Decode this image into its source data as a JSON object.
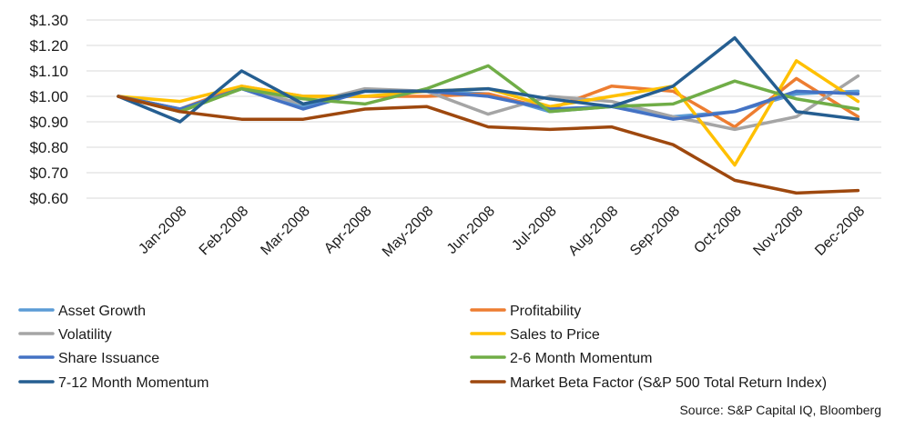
{
  "chart_data": {
    "type": "line",
    "title": "",
    "xlabel": "",
    "ylabel": "",
    "ylim": [
      0.6,
      1.3
    ],
    "y_ticks": [
      0.6,
      0.7,
      0.8,
      0.9,
      1.0,
      1.1,
      1.2,
      1.3
    ],
    "y_tick_labels": [
      "$0.60",
      "$0.70",
      "$0.80",
      "$0.90",
      "$1.00",
      "$1.10",
      "$1.20",
      "$1.30"
    ],
    "categories": [
      "",
      "Jan-2008",
      "Feb-2008",
      "Mar-2008",
      "Apr-2008",
      "May-2008",
      "Jun-2008",
      "Jul-2008",
      "Aug-2008",
      "Sep-2008",
      "Oct-2008",
      "Nov-2008",
      "Dec-2008"
    ],
    "grid": true,
    "legend_position": "bottom",
    "series": [
      {
        "name": "Asset Growth",
        "color": "#5B9BD5",
        "values": [
          1.0,
          0.95,
          1.03,
          0.96,
          1.02,
          1.02,
          1.01,
          0.94,
          0.96,
          0.92,
          0.94,
          1.01,
          1.02
        ]
      },
      {
        "name": "Profitability",
        "color": "#ED7D31",
        "values": [
          1.0,
          0.95,
          1.04,
          1.0,
          1.0,
          1.0,
          1.01,
          0.95,
          1.04,
          1.02,
          0.88,
          1.07,
          0.92
        ]
      },
      {
        "name": "Volatility",
        "color": "#A5A5A5",
        "values": [
          1.0,
          0.95,
          1.03,
          0.97,
          1.03,
          1.02,
          0.93,
          1.0,
          0.98,
          0.92,
          0.87,
          0.92,
          1.08
        ]
      },
      {
        "name": "Sales to Price",
        "color": "#FFC000",
        "values": [
          1.0,
          0.98,
          1.04,
          1.0,
          1.0,
          1.02,
          1.03,
          0.96,
          1.0,
          1.04,
          0.73,
          1.14,
          0.98
        ]
      },
      {
        "name": "Share Issuance",
        "color": "#4472C4",
        "values": [
          1.0,
          0.95,
          1.03,
          0.95,
          1.02,
          1.02,
          1.0,
          0.95,
          0.96,
          0.91,
          0.94,
          1.02,
          1.01
        ]
      },
      {
        "name": "2-6 Month Momentum",
        "color": "#70AD47",
        "values": [
          1.0,
          0.94,
          1.03,
          0.99,
          0.97,
          1.03,
          1.12,
          0.94,
          0.96,
          0.97,
          1.06,
          0.99,
          0.95
        ]
      },
      {
        "name": "7-12 Month Momentum",
        "color": "#255E91",
        "values": [
          1.0,
          0.9,
          1.1,
          0.97,
          1.02,
          1.02,
          1.03,
          0.99,
          0.96,
          1.04,
          1.23,
          0.94,
          0.91
        ]
      },
      {
        "name": "Market Beta Factor (S&P 500 Total Return Index)",
        "color": "#9E480E",
        "values": [
          1.0,
          0.94,
          0.91,
          0.91,
          0.95,
          0.96,
          0.88,
          0.87,
          0.88,
          0.81,
          0.67,
          0.62,
          0.63
        ]
      }
    ],
    "source": "Source: S&P Capital IQ, Bloomberg"
  },
  "colors": {
    "grid": "#D9D9D9",
    "text": "#1a1a1a"
  }
}
